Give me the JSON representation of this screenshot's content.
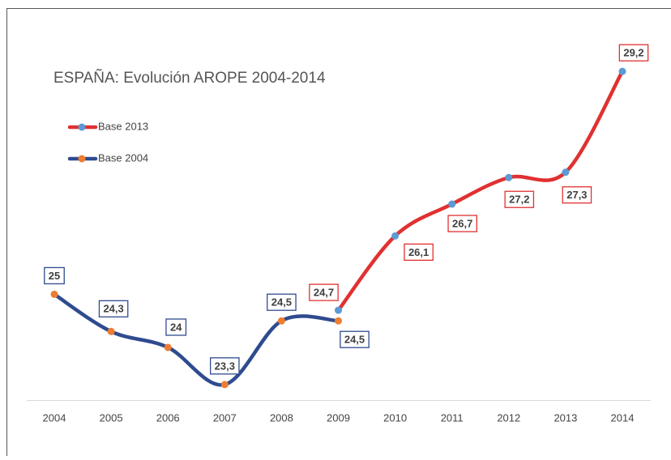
{
  "chart_data": {
    "type": "line",
    "title": "ESPAÑA: Evolución AROPE 2004-2014",
    "categories": [
      "2004",
      "2005",
      "2006",
      "2007",
      "2008",
      "2009",
      "2010",
      "2011",
      "2012",
      "2013",
      "2014"
    ],
    "series": [
      {
        "name": "Base 2013",
        "color": "#e03131",
        "marker_color": "#5b9bd5",
        "values": [
          null,
          null,
          null,
          null,
          null,
          24.7,
          26.1,
          26.7,
          27.2,
          27.3,
          29.2
        ],
        "value_labels": [
          null,
          null,
          null,
          null,
          null,
          "24,7",
          "26,1",
          "26,7",
          "27,2",
          "27,3",
          "29,2"
        ]
      },
      {
        "name": "Base 2004",
        "color": "#2f4b8f",
        "marker_color": "#ed7d31",
        "values": [
          25,
          24.3,
          24,
          23.3,
          24.5,
          24.5,
          null,
          null,
          null,
          null,
          null
        ],
        "value_labels": [
          "25",
          "24,3",
          "24",
          "23,3",
          "24,5",
          "24,5",
          null,
          null,
          null,
          null,
          null
        ]
      }
    ],
    "ylim": [
      23,
      29.5
    ],
    "legend": "top-left"
  }
}
